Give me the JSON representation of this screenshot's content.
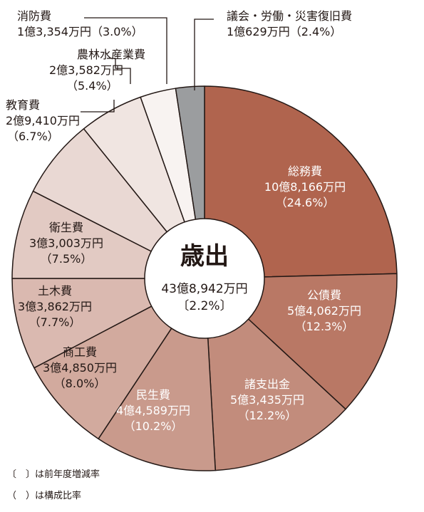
{
  "chart_data": {
    "type": "pie",
    "center": {
      "title": "歳出",
      "total": "43億8,942万円",
      "change": "〔2.2%〕"
    },
    "slices": [
      {
        "name": "総務費",
        "amount": "10億8,166万円",
        "pct_label": "（24.6%）",
        "value": 24.6,
        "color": "#b0644e",
        "text_color": "#ffffff"
      },
      {
        "name": "公債費",
        "amount": "5億4,062万円",
        "pct_label": "（12.3%）",
        "value": 12.3,
        "color": "#b97865",
        "text_color": "#ffffff"
      },
      {
        "name": "諸支出金",
        "amount": "5億3,435万円",
        "pct_label": "（12.2%）",
        "value": 12.2,
        "color": "#c28c7c",
        "text_color": "#ffffff"
      },
      {
        "name": "民生費",
        "amount": "4億4,589万円",
        "pct_label": "（10.2%）",
        "value": 10.2,
        "color": "#c99a8c",
        "text_color": "#ffffff"
      },
      {
        "name": "商工費",
        "amount": "3億4,850万円",
        "pct_label": "（8.0%）",
        "value": 8.0,
        "color": "#d2aa9e",
        "text_color": "#231815"
      },
      {
        "name": "土木費",
        "amount": "3億3,862万円",
        "pct_label": "（7.7%）",
        "value": 7.7,
        "color": "#dab9b0",
        "text_color": "#231815"
      },
      {
        "name": "衛生費",
        "amount": "3億3,003万円",
        "pct_label": "（7.5%）",
        "value": 7.5,
        "color": "#e2cac3",
        "text_color": "#231815"
      },
      {
        "name": "教育費",
        "amount": "2億9,410万円",
        "pct_label": "（6.7%）",
        "value": 6.7,
        "color": "#e9d8d3",
        "text_color": "#231815"
      },
      {
        "name": "農林水産業費",
        "amount": "2億3,582万円",
        "pct_label": "（5.4%）",
        "value": 5.4,
        "color": "#f0e5e1",
        "text_color": "#231815"
      },
      {
        "name": "消防費",
        "amount": "1億3,354万円",
        "pct_label": "（3.0%）",
        "value": 3.0,
        "color": "#f8f3f1",
        "text_color": "#231815"
      },
      {
        "name": "議会・労働・災害復旧費",
        "amount": "1億629万円",
        "pct_label": "（2.4%）",
        "value": 2.4,
        "color": "#9b9d9f",
        "text_color": "#231815"
      }
    ],
    "legend_notes": [
      "〔　〕は前年度増減率",
      "（　）は構成比率"
    ]
  }
}
